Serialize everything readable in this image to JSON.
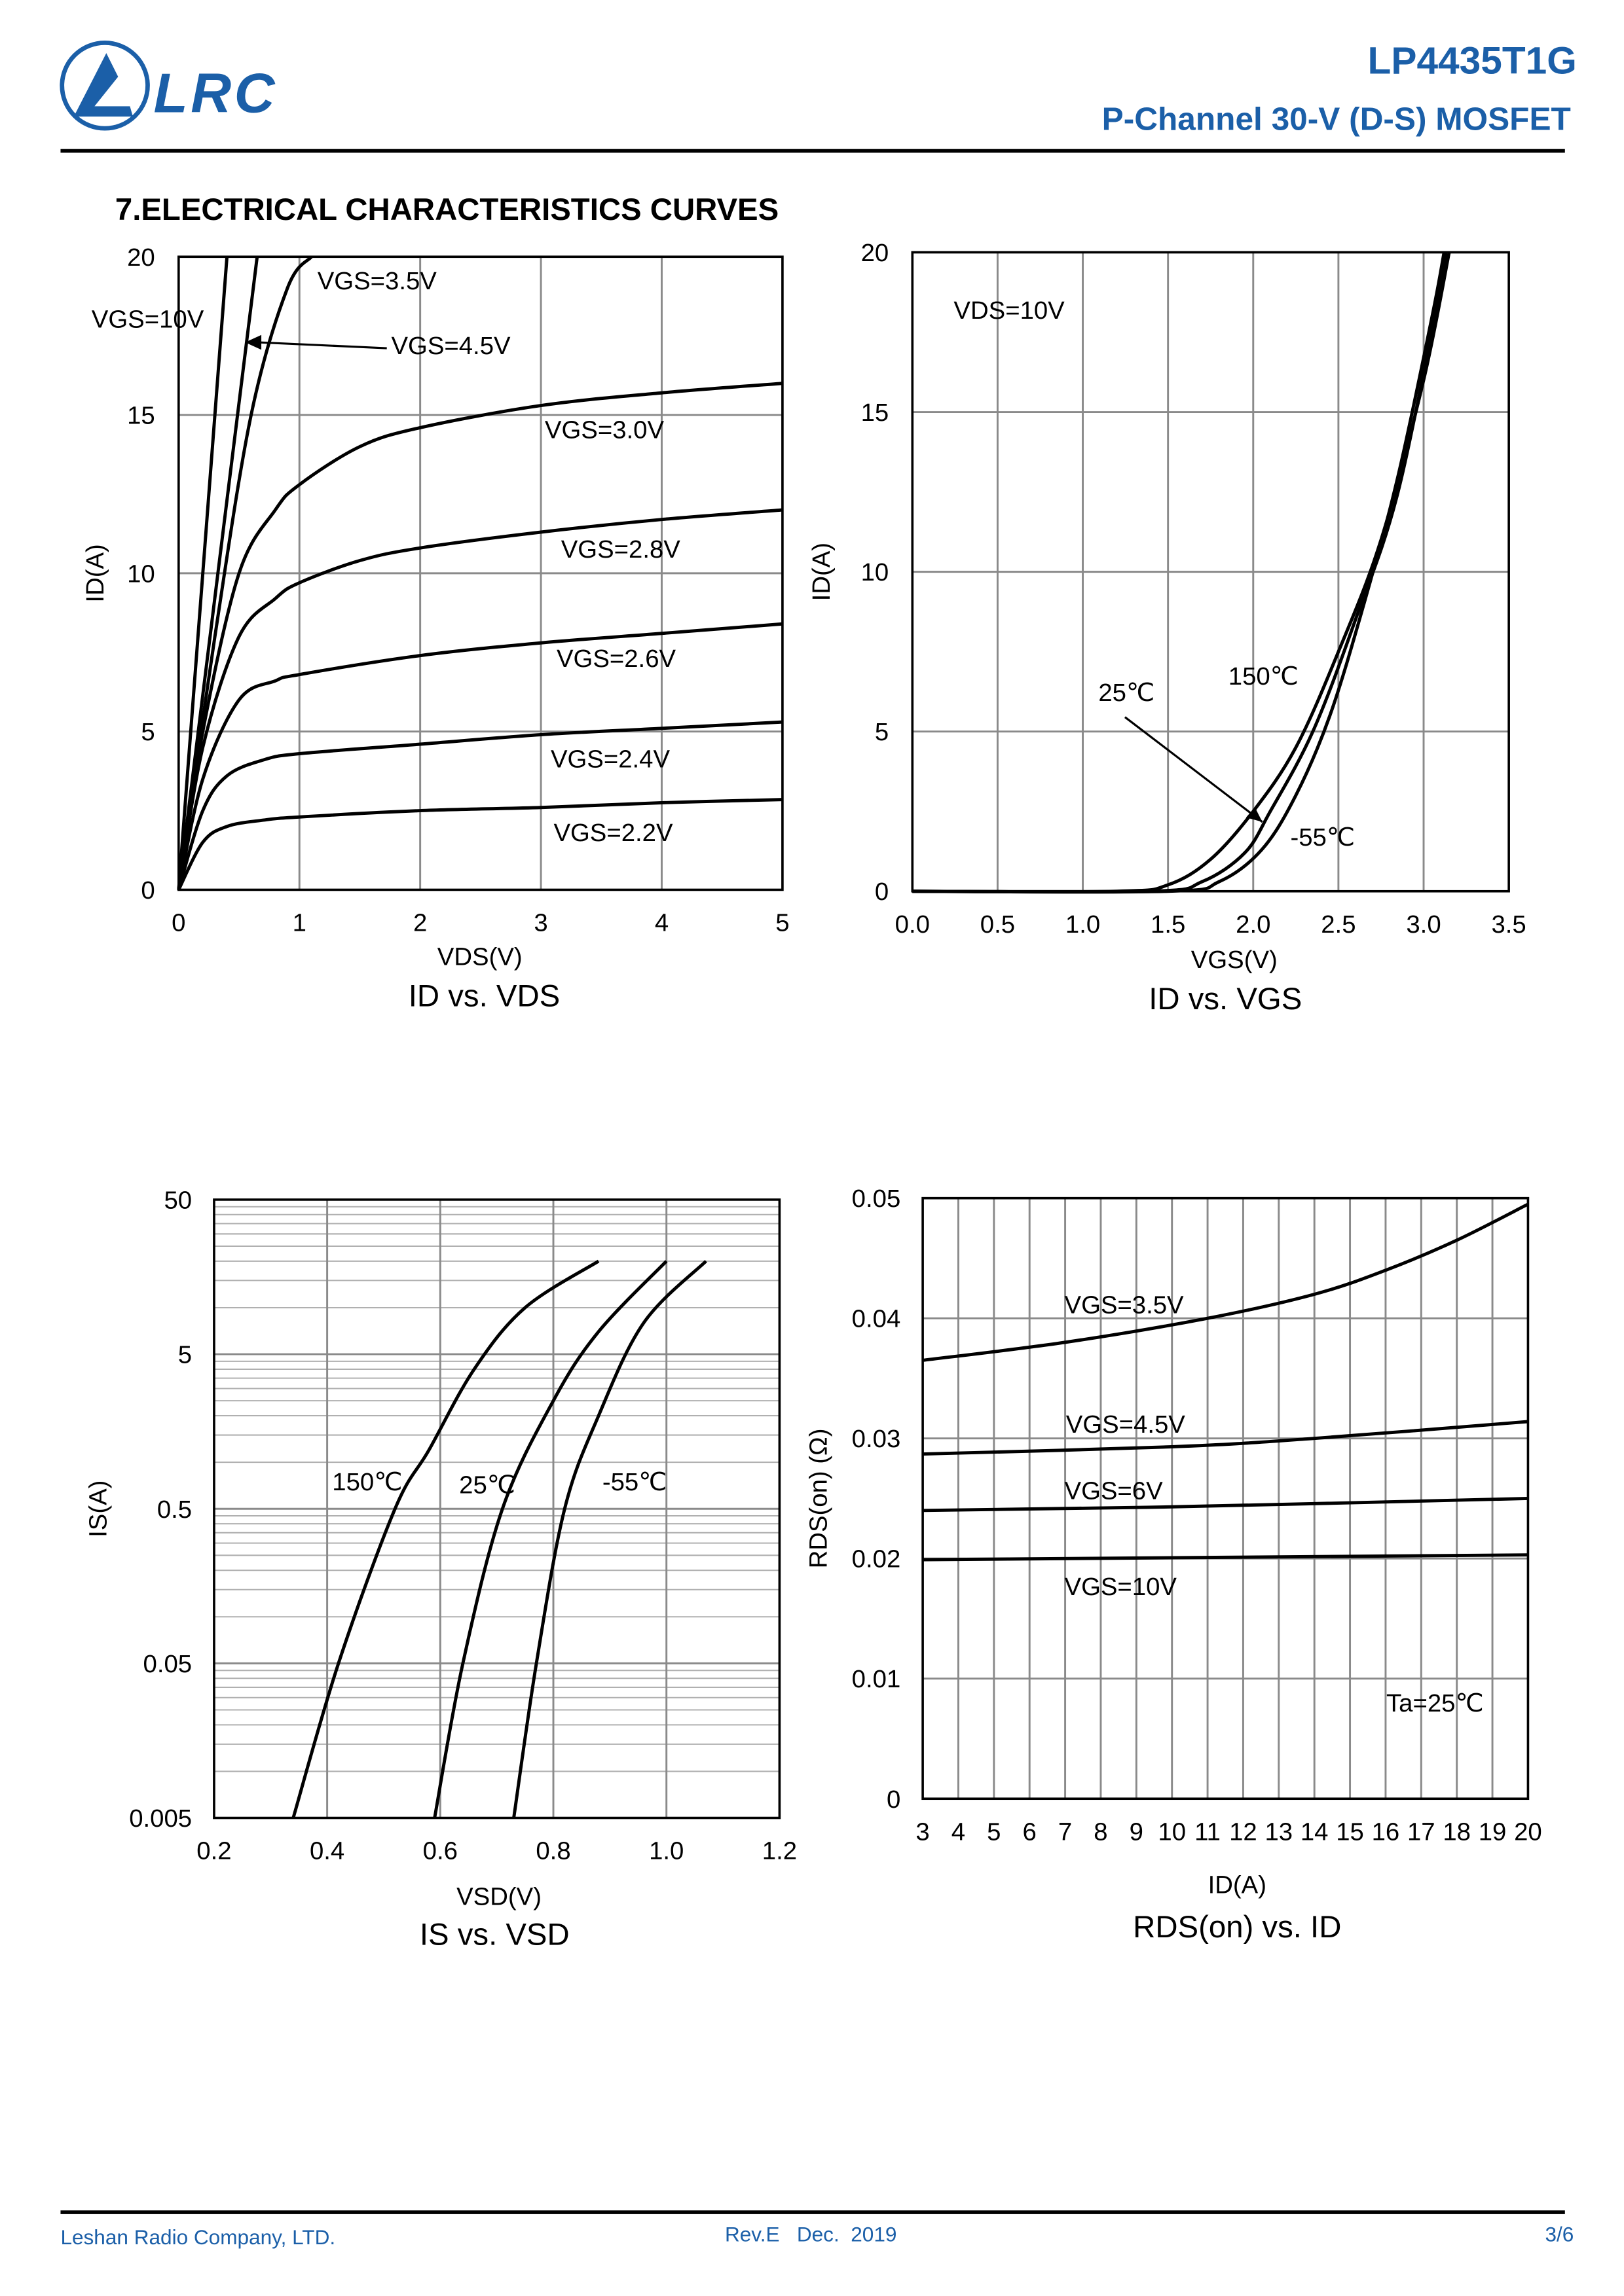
{
  "header": {
    "logo_text": "LRC",
    "part_number": "LP4435T1G",
    "subtitle": "P-Channel 30-V (D-S) MOSFET",
    "brand_color": "#1b5fa8"
  },
  "section_title": "7.ELECTRICAL CHARACTERISTICS CURVES",
  "footer": {
    "company": "Leshan Radio Company, LTD.",
    "revision": "Rev.E   Dec.  2019",
    "page": "3/6"
  },
  "chart_data": [
    {
      "type": "line",
      "title": "ID vs. VDS",
      "xlabel": "VDS(V)",
      "ylabel": "ID(A)",
      "xlim": [
        0,
        5
      ],
      "ylim": [
        0,
        20
      ],
      "xticks": [
        "0",
        "1",
        "2",
        "3",
        "4",
        "5"
      ],
      "yticks": [
        "0",
        "5",
        "10",
        "15",
        "20"
      ],
      "grid": true,
      "series": [
        {
          "name": "VGS=10V",
          "points": [
            [
              0,
              0
            ],
            [
              0.4,
              20
            ]
          ]
        },
        {
          "name": "VGS=4.5V",
          "points": [
            [
              0,
              0
            ],
            [
              0.65,
              20
            ]
          ]
        },
        {
          "name": "VGS=3.5V",
          "points": [
            [
              0,
              0
            ],
            [
              0.3,
              8
            ],
            [
              0.6,
              15
            ],
            [
              0.9,
              19
            ],
            [
              1.1,
              20
            ]
          ]
        },
        {
          "name": "VGS=3.0V",
          "points": [
            [
              0,
              0
            ],
            [
              0.2,
              5
            ],
            [
              0.5,
              10
            ],
            [
              0.8,
              12
            ],
            [
              1,
              12.8
            ],
            [
              1.5,
              14
            ],
            [
              2,
              14.6
            ],
            [
              3,
              15.3
            ],
            [
              4,
              15.7
            ],
            [
              5,
              16
            ]
          ]
        },
        {
          "name": "VGS=2.8V",
          "points": [
            [
              0,
              0
            ],
            [
              0.2,
              4.5
            ],
            [
              0.5,
              8
            ],
            [
              0.8,
              9.2
            ],
            [
              1,
              9.7
            ],
            [
              1.5,
              10.4
            ],
            [
              2,
              10.8
            ],
            [
              3,
              11.3
            ],
            [
              4,
              11.7
            ],
            [
              5,
              12
            ]
          ]
        },
        {
          "name": "VGS=2.6V",
          "points": [
            [
              0,
              0
            ],
            [
              0.2,
              3.5
            ],
            [
              0.5,
              6
            ],
            [
              0.8,
              6.6
            ],
            [
              1,
              6.8
            ],
            [
              2,
              7.4
            ],
            [
              3,
              7.8
            ],
            [
              4,
              8.1
            ],
            [
              5,
              8.4
            ]
          ]
        },
        {
          "name": "VGS=2.4V",
          "points": [
            [
              0,
              0
            ],
            [
              0.2,
              2.5
            ],
            [
              0.4,
              3.6
            ],
            [
              0.7,
              4.1
            ],
            [
              1,
              4.3
            ],
            [
              2,
              4.6
            ],
            [
              3,
              4.9
            ],
            [
              4,
              5.1
            ],
            [
              5,
              5.3
            ]
          ]
        },
        {
          "name": "VGS=2.2V",
          "points": [
            [
              0,
              0
            ],
            [
              0.2,
              1.5
            ],
            [
              0.4,
              2.0
            ],
            [
              0.7,
              2.2
            ],
            [
              1,
              2.3
            ],
            [
              2,
              2.5
            ],
            [
              3,
              2.6
            ],
            [
              4,
              2.75
            ],
            [
              5,
              2.85
            ]
          ]
        }
      ],
      "annotations": []
    },
    {
      "type": "line",
      "title": "ID vs. VGS",
      "xlabel": "VGS(V)",
      "ylabel": "ID(A)",
      "xlim": [
        0,
        3.5
      ],
      "ylim": [
        0,
        20
      ],
      "xticks": [
        "0.0",
        "0.5",
        "1.0",
        "1.5",
        "2.0",
        "2.5",
        "3.0",
        "3.5"
      ],
      "yticks": [
        "0",
        "5",
        "10",
        "15",
        "20"
      ],
      "grid": true,
      "series": [
        {
          "name": "150℃",
          "points": [
            [
              0,
              0
            ],
            [
              1.2,
              0
            ],
            [
              1.5,
              0.2
            ],
            [
              1.75,
              1
            ],
            [
              2.0,
              2.5
            ],
            [
              2.25,
              4.5
            ],
            [
              2.5,
              7.5
            ],
            [
              2.75,
              11
            ],
            [
              3.0,
              16
            ],
            [
              3.15,
              20
            ]
          ]
        },
        {
          "name": "25℃",
          "points": [
            [
              0,
              0
            ],
            [
              1.4,
              0
            ],
            [
              1.7,
              0.3
            ],
            [
              1.95,
              1.2
            ],
            [
              2.1,
              2.5
            ],
            [
              2.35,
              5
            ],
            [
              2.6,
              8.5
            ],
            [
              2.85,
              12.5
            ],
            [
              3.1,
              19
            ],
            [
              3.13,
              20
            ]
          ]
        },
        {
          "name": "-55℃",
          "points": [
            [
              0,
              0
            ],
            [
              1.5,
              0
            ],
            [
              1.8,
              0.3
            ],
            [
              2.05,
              1.3
            ],
            [
              2.25,
              3
            ],
            [
              2.45,
              5.5
            ],
            [
              2.65,
              9
            ],
            [
              2.85,
              13
            ],
            [
              3.05,
              18
            ],
            [
              3.12,
              20
            ]
          ]
        }
      ],
      "annotations": [
        "VDS=10V"
      ]
    },
    {
      "type": "line",
      "title": "IS vs. VSD",
      "xlabel": "VSD(V)",
      "ylabel": "IS(A)",
      "xlim": [
        0.2,
        1.2
      ],
      "ylim": [
        0.005,
        50
      ],
      "yscale": "log",
      "xticks": [
        "0.2",
        "0.4",
        "0.6",
        "0.8",
        "1.0",
        "1.2"
      ],
      "yticks": [
        "0.005",
        "0.05",
        "0.5",
        "5",
        "50"
      ],
      "grid": true,
      "series": [
        {
          "name": "150℃",
          "points": [
            [
              0.34,
              0.005
            ],
            [
              0.42,
              0.05
            ],
            [
              0.52,
              0.5
            ],
            [
              0.58,
              1.2
            ],
            [
              0.66,
              4
            ],
            [
              0.75,
              10
            ],
            [
              0.88,
              20
            ]
          ]
        },
        {
          "name": "25℃",
          "points": [
            [
              0.59,
              0.005
            ],
            [
              0.64,
              0.05
            ],
            [
              0.71,
              0.5
            ],
            [
              0.8,
              2.5
            ],
            [
              0.88,
              7
            ],
            [
              1.0,
              20
            ]
          ]
        },
        {
          "name": "-55℃",
          "points": [
            [
              0.73,
              0.005
            ],
            [
              0.77,
              0.05
            ],
            [
              0.82,
              0.5
            ],
            [
              0.88,
              2
            ],
            [
              0.96,
              8
            ],
            [
              1.07,
              20
            ]
          ]
        }
      ],
      "annotations": []
    },
    {
      "type": "line",
      "title": "RDS(on) vs. ID",
      "xlabel": "ID(A)",
      "ylabel": "RDS(on) (Ω)",
      "xlim": [
        3,
        20
      ],
      "ylim": [
        0,
        0.05
      ],
      "xticks": [
        "3",
        "4",
        "5",
        "6",
        "7",
        "8",
        "9",
        "10",
        "11",
        "12",
        "13",
        "14",
        "15",
        "16",
        "17",
        "18",
        "19",
        "20"
      ],
      "yticks": [
        "0",
        "0.01",
        "0.02",
        "0.03",
        "0.04",
        "0.05"
      ],
      "grid": true,
      "series": [
        {
          "name": "VGS=3.5V",
          "points": [
            [
              3,
              0.0365
            ],
            [
              7,
              0.038
            ],
            [
              11,
              0.04
            ],
            [
              14,
              0.042
            ],
            [
              16,
              0.044
            ],
            [
              18,
              0.0465
            ],
            [
              20,
              0.0495
            ]
          ]
        },
        {
          "name": "VGS=4.5V",
          "points": [
            [
              3,
              0.0287
            ],
            [
              10,
              0.0293
            ],
            [
              14,
              0.03
            ],
            [
              20,
              0.0314
            ]
          ]
        },
        {
          "name": "VGS=6V",
          "points": [
            [
              3,
              0.024
            ],
            [
              10,
              0.0243
            ],
            [
              20,
              0.025
            ]
          ]
        },
        {
          "name": "VGS=10V",
          "points": [
            [
              3,
              0.0199
            ],
            [
              20,
              0.0203
            ]
          ]
        }
      ],
      "annotations": [
        "Ta=25℃"
      ]
    }
  ]
}
